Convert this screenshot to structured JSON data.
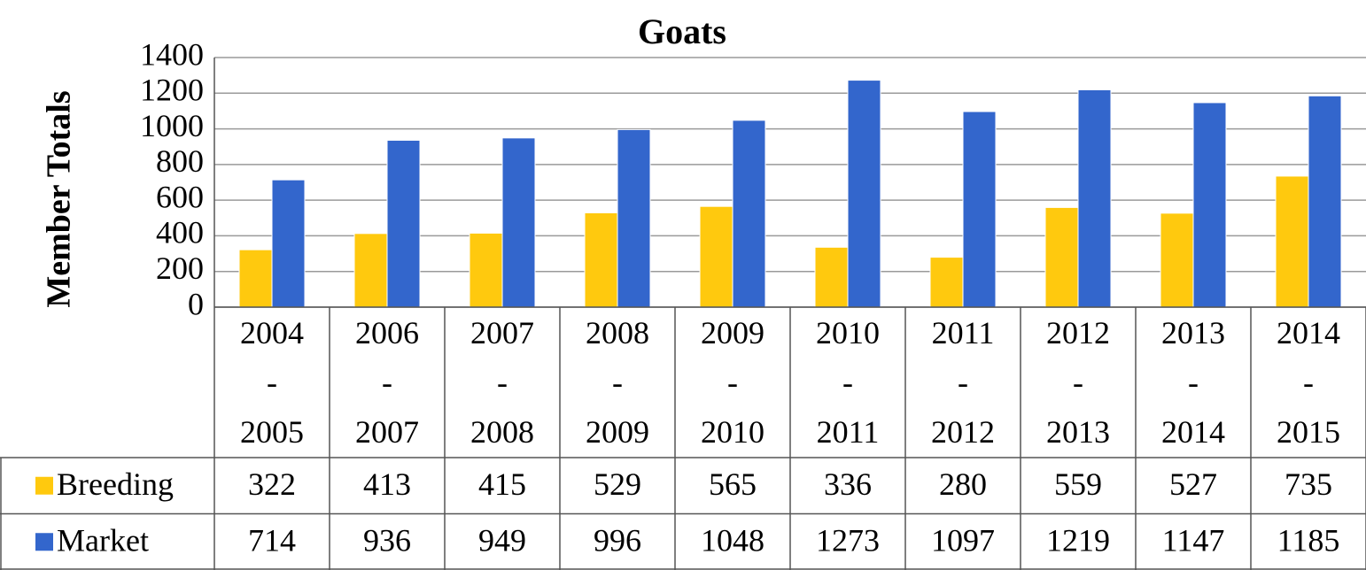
{
  "chart_data": {
    "type": "bar",
    "title": "Goats",
    "y_label": "Member Totals",
    "categories": [
      "2004 - 2005",
      "2006 - 2007",
      "2007 - 2008",
      "2008 - 2009",
      "2009 - 2010",
      "2010 - 2011",
      "2011 - 2012",
      "2012 - 2013",
      "2013 - 2014",
      "2014 - 2015"
    ],
    "series": [
      {
        "name": "Breeding",
        "color": "#ffc90e",
        "values": [
          322,
          413,
          415,
          529,
          565,
          336,
          280,
          559,
          527,
          735
        ]
      },
      {
        "name": "Market",
        "color": "#3366cc",
        "values": [
          714,
          936,
          949,
          996,
          1048,
          1273,
          1097,
          1219,
          1147,
          1185
        ]
      }
    ],
    "ylim": [
      0,
      1400
    ],
    "yticks": [
      0,
      200,
      400,
      600,
      800,
      1000,
      1200,
      1400
    ],
    "grid": true,
    "data_table": true
  }
}
